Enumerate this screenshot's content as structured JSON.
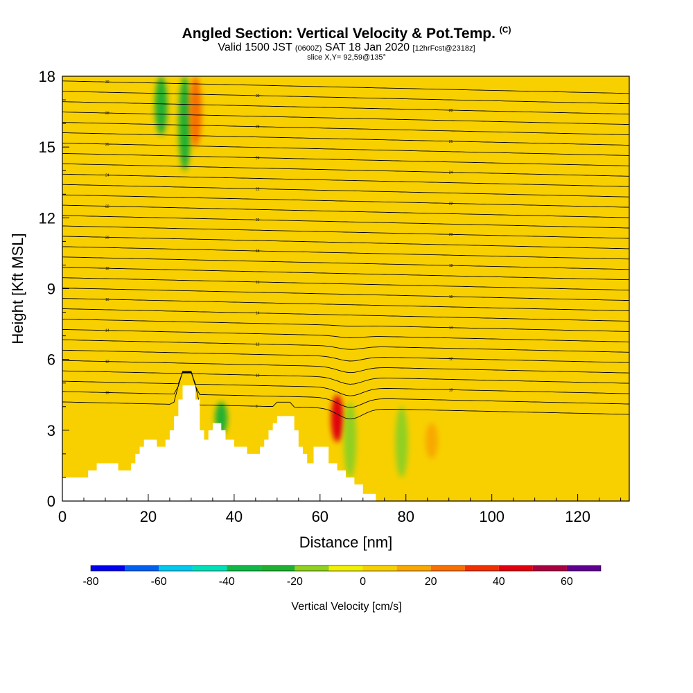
{
  "title": {
    "main": "Angled Section: Vertical Velocity & Pot.Temp.",
    "main_suffix": "(C)",
    "valid_prefix": "Valid 1500 JST",
    "valid_zulu": "(0600Z)",
    "valid_date": "SAT 18 Jan 2020",
    "fcst": "[12hrFcst@2318z]",
    "slice": "slice X,Y= 92,59@135°"
  },
  "chart_data": {
    "type": "heatmap",
    "xlabel": "Distance [nm]",
    "ylabel": "Height [Kft MSL]",
    "xlim": [
      0,
      132
    ],
    "ylim": [
      0,
      18
    ],
    "x_ticks": [
      "0",
      "20",
      "40",
      "60",
      "80",
      "100",
      "120"
    ],
    "x_tick_values": [
      0,
      20,
      40,
      60,
      80,
      100,
      120
    ],
    "y_ticks": [
      "0",
      "3",
      "6",
      "9",
      "12",
      "15",
      "18"
    ],
    "y_tick_values": [
      0,
      3,
      6,
      9,
      12,
      15,
      18
    ],
    "background_value": 5,
    "terrain_kft": [
      [
        0,
        1.0
      ],
      [
        5,
        1.0
      ],
      [
        6,
        1.3
      ],
      [
        8,
        1.6
      ],
      [
        12,
        1.6
      ],
      [
        13,
        1.3
      ],
      [
        15,
        1.3
      ],
      [
        16,
        1.6
      ],
      [
        17,
        2.0
      ],
      [
        18,
        2.3
      ],
      [
        19,
        2.6
      ],
      [
        21,
        2.6
      ],
      [
        22,
        2.3
      ],
      [
        24,
        2.6
      ],
      [
        25,
        3.0
      ],
      [
        26,
        3.6
      ],
      [
        27,
        4.3
      ],
      [
        28,
        4.9
      ],
      [
        30,
        4.9
      ],
      [
        31,
        4.3
      ],
      [
        32,
        3.0
      ],
      [
        33,
        2.6
      ],
      [
        34,
        3.0
      ],
      [
        35,
        3.3
      ],
      [
        37,
        3.0
      ],
      [
        38,
        2.6
      ],
      [
        39,
        2.6
      ],
      [
        40,
        2.3
      ],
      [
        42,
        2.3
      ],
      [
        43,
        2.0
      ],
      [
        45,
        2.0
      ],
      [
        46,
        2.3
      ],
      [
        47,
        2.6
      ],
      [
        48,
        3.0
      ],
      [
        49,
        3.3
      ],
      [
        50,
        3.6
      ],
      [
        53,
        3.6
      ],
      [
        54,
        3.0
      ],
      [
        55,
        2.3
      ],
      [
        56,
        2.0
      ],
      [
        57,
        1.6
      ],
      [
        58,
        1.6
      ],
      [
        58.5,
        2.3
      ],
      [
        61,
        2.3
      ],
      [
        62,
        1.6
      ],
      [
        64,
        1.3
      ],
      [
        66,
        1.0
      ],
      [
        68,
        0.7
      ],
      [
        70,
        0.3
      ],
      [
        72,
        0.3
      ],
      [
        73,
        0
      ],
      [
        132,
        0
      ]
    ],
    "potential_temperature_label_values": [
      "30",
      "30",
      "28",
      "28",
      "28",
      "26",
      "26",
      "24",
      "24",
      "24",
      "22",
      "22",
      "22",
      "20",
      "20",
      "20",
      "18",
      "18",
      "18",
      "16",
      "16",
      "16",
      "14",
      "14",
      "14",
      "12",
      "12",
      "12",
      "10",
      "10",
      "10",
      "8"
    ],
    "velocity_features": [
      {
        "x": 23,
        "y_from": 15.5,
        "y_to": 18,
        "value": -25
      },
      {
        "x": 28.5,
        "y_from": 14,
        "y_to": 18,
        "value": -25
      },
      {
        "x": 31,
        "y_from": 15,
        "y_to": 18,
        "value": 20
      },
      {
        "x": 37,
        "y_from": 2.8,
        "y_to": 4.2,
        "value": -30
      },
      {
        "x": 64,
        "y_from": 2.5,
        "y_to": 4.5,
        "value": 40
      },
      {
        "x": 67,
        "y_from": 1.0,
        "y_to": 4.2,
        "value": -20
      },
      {
        "x": 79,
        "y_from": 1.0,
        "y_to": 4.0,
        "value": -20
      },
      {
        "x": 86,
        "y_from": 1.8,
        "y_to": 3.3,
        "value": 15
      }
    ],
    "colorbar": {
      "label": "Vertical Velocity [cm/s]",
      "tick_labels": [
        "-80",
        "-60",
        "-40",
        "-20",
        "0",
        "20",
        "40",
        "60"
      ],
      "tick_values": [
        -80,
        -60,
        -40,
        -20,
        0,
        20,
        40,
        60
      ],
      "bins": [
        -80,
        -70,
        -60,
        -50,
        -40,
        -30,
        -20,
        -10,
        0,
        10,
        20,
        30,
        40,
        50,
        60,
        70
      ],
      "colors": [
        "#0000f0",
        "#0060f0",
        "#00c8f0",
        "#00e0b8",
        "#10b848",
        "#20b030",
        "#90d020",
        "#f0f000",
        "#f8d000",
        "#f8a800",
        "#f87000",
        "#f03000",
        "#e00010",
        "#a80040",
        "#600090"
      ]
    }
  }
}
